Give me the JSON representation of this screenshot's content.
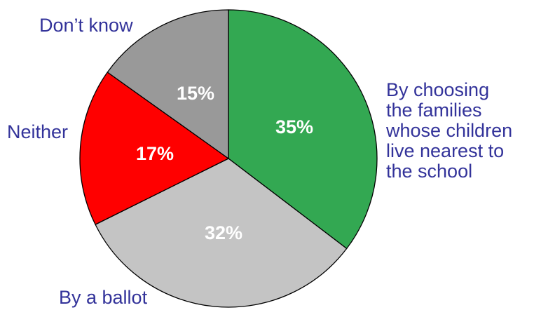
{
  "chart_data": {
    "type": "pie",
    "title": "",
    "start_angle_deg": 0,
    "direction": "clockwise",
    "slices": [
      {
        "label_lines": [
          "By choosing",
          "the families",
          "whose children",
          "live nearest to",
          "the school"
        ],
        "value": 35,
        "value_label": "35%",
        "color": "#33a852"
      },
      {
        "label_lines": [
          "By a ballot"
        ],
        "value": 32,
        "value_label": "32%",
        "color": "#c4c4c4"
      },
      {
        "label_lines": [
          "Neither"
        ],
        "value": 17,
        "value_label": "17%",
        "color": "#ff0000"
      },
      {
        "label_lines": [
          "Don’t know"
        ],
        "value": 15,
        "value_label": "15%",
        "color": "#999999"
      }
    ],
    "label_color": "#33339a",
    "value_label_color": "#ffffff",
    "outline_color": "#000000"
  }
}
